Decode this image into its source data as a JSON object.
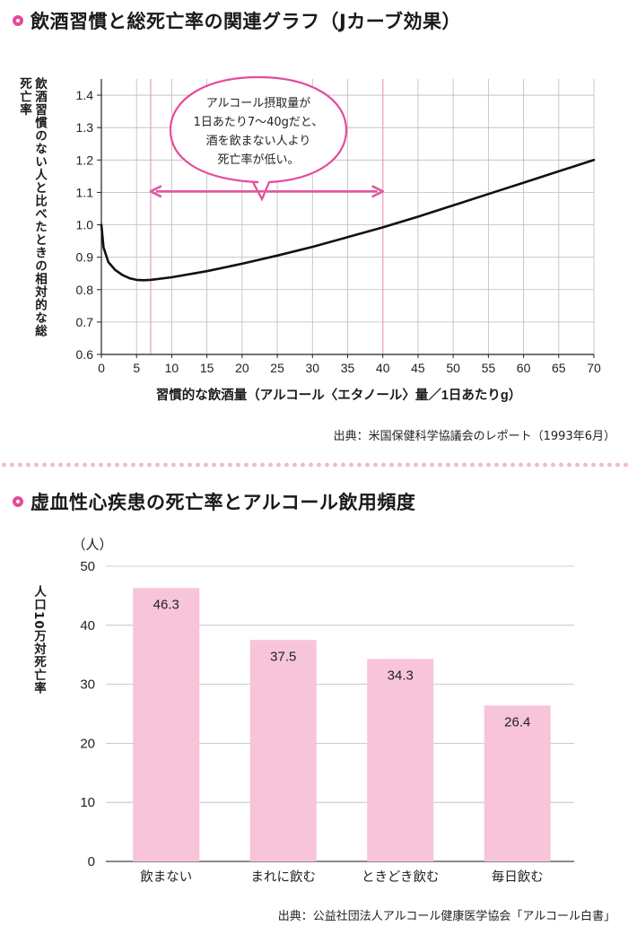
{
  "titles": {
    "chart1": "飲酒習慣と総死亡率の関連グラフ（Jカーブ効果）",
    "chart2": "虚血性心疾患の死亡率とアルコール飲用頻度"
  },
  "callout": {
    "lines": [
      "アルコール摂取量が",
      "1日あたり7〜40gだと、",
      "酒を飲まない人より",
      "死亡率が低い。"
    ]
  },
  "sources": {
    "chart1": "出典：米国保健科学協議会のレポート（1993年6月）",
    "chart2": "出典：公益社団法人アルコール健康医学協会「アルコール白書」"
  },
  "colors": {
    "accent": "#e64a9a",
    "bar": "#f7c4d9",
    "arrow": "#e05aa0",
    "highlight_line": "#f0a8c8",
    "grid": "#bbbbbb",
    "curve": "#111111"
  },
  "chart_data": [
    {
      "type": "line",
      "title": "飲酒習慣と総死亡率の関連グラフ（Jカーブ効果）",
      "xlabel": "習慣的な飲酒量（アルコール〈エタノール〉量／1日あたりg）",
      "ylabel": "飲酒習慣のない人と比べたときの相対的な総死亡率",
      "xlim": [
        0,
        70
      ],
      "ylim": [
        0.6,
        1.45
      ],
      "x_ticks": [
        0,
        5,
        10,
        15,
        20,
        25,
        30,
        35,
        40,
        45,
        50,
        55,
        60,
        65,
        70
      ],
      "y_ticks": [
        0.6,
        0.7,
        0.8,
        0.9,
        1.0,
        1.1,
        1.2,
        1.3,
        1.4
      ],
      "grid": true,
      "series": [
        {
          "x": [
            0,
            0.3,
            1,
            2,
            3,
            4,
            5,
            6,
            7,
            10,
            15,
            20,
            25,
            30,
            35,
            40,
            45,
            50,
            55,
            60,
            65,
            70
          ],
          "y": [
            1.0,
            0.93,
            0.885,
            0.86,
            0.845,
            0.835,
            0.83,
            0.829,
            0.83,
            0.838,
            0.857,
            0.88,
            0.905,
            0.932,
            0.962,
            0.992,
            1.025,
            1.06,
            1.095,
            1.13,
            1.165,
            1.2
          ]
        }
      ],
      "highlight_range": [
        7,
        40
      ],
      "annotation_arrow": {
        "from": 7,
        "to": 40,
        "y": 1.02
      }
    },
    {
      "type": "bar",
      "title": "虚血性心疾患の死亡率とアルコール飲用頻度",
      "unit_label": "（人）",
      "ylabel": "人口10万対死亡率",
      "categories": [
        "飲まない",
        "まれに飲む",
        "ときどき飲む",
        "毎日飲む"
      ],
      "values": [
        46.3,
        37.5,
        34.3,
        26.4
      ],
      "value_labels": [
        "46.3",
        "37.5",
        "34.3",
        "26.4"
      ],
      "ylim": [
        0,
        50
      ],
      "y_ticks": [
        0,
        10,
        20,
        30,
        40,
        50
      ],
      "grid": true
    }
  ]
}
